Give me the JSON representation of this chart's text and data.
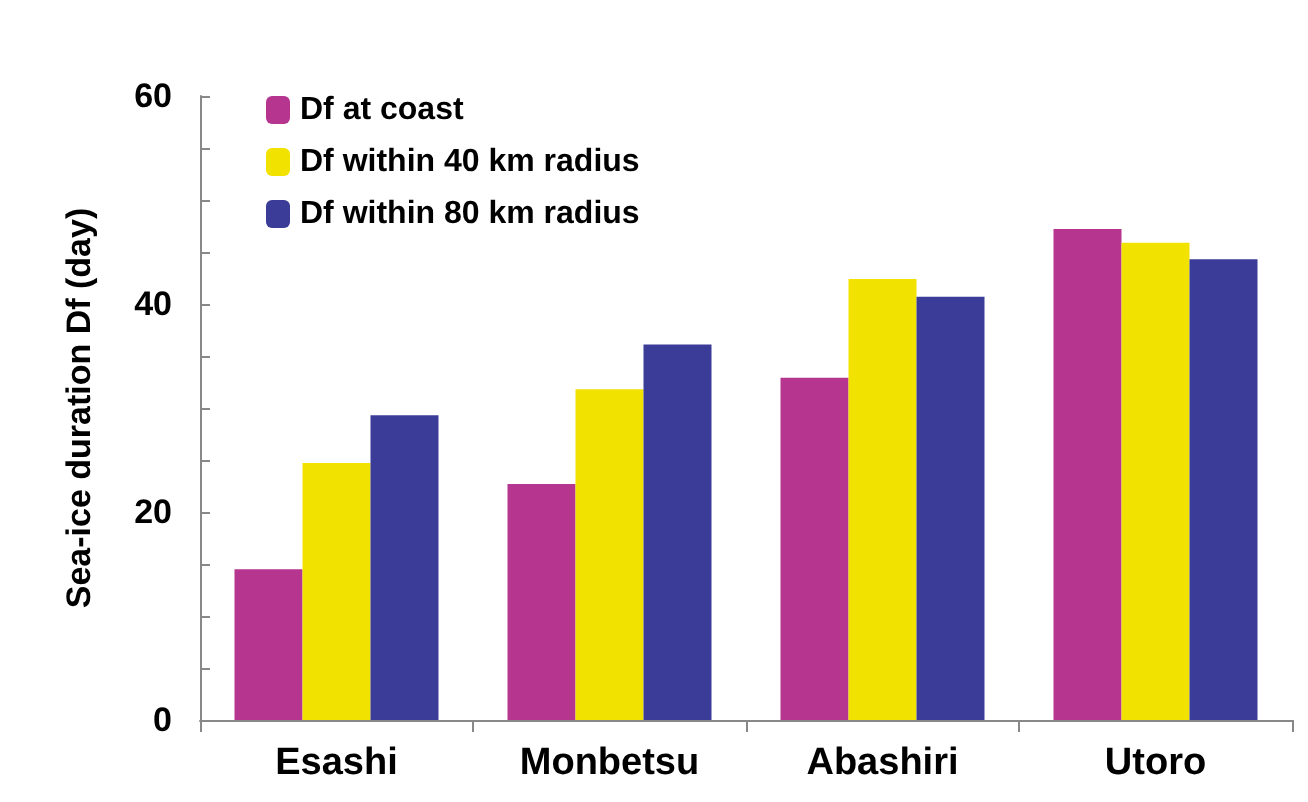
{
  "chart_data": {
    "type": "bar",
    "ylabel": "Sea-ice duration Df (day)",
    "categories": [
      "Esashi",
      "Monbetsu",
      "Abashiri",
      "Utoro"
    ],
    "series": [
      {
        "name": "Df at coast",
        "color": "#b5358f",
        "values": [
          14.5,
          22.7,
          32.9,
          47.2
        ]
      },
      {
        "name": "Df within 40 km radius",
        "color": "#f2e200",
        "values": [
          24.7,
          31.8,
          42.4,
          45.9
        ]
      },
      {
        "name": "Df within 80 km radius",
        "color": "#3b3c98",
        "values": [
          29.3,
          36.1,
          40.7,
          44.3
        ]
      }
    ],
    "ylim": [
      0,
      60
    ],
    "yticks": [
      0,
      {
        "value": 5,
        "label": null
      },
      {
        "value": 10,
        "label": null
      },
      {
        "value": 15,
        "label": null
      },
      20,
      {
        "value": 25,
        "label": null
      },
      {
        "value": 30,
        "label": null
      },
      {
        "value": 35,
        "label": null
      },
      40,
      {
        "value": 45,
        "label": null
      },
      {
        "value": 50,
        "label": null
      },
      {
        "value": 55,
        "label": null
      },
      60
    ],
    "grid": false,
    "legend": "top left"
  }
}
